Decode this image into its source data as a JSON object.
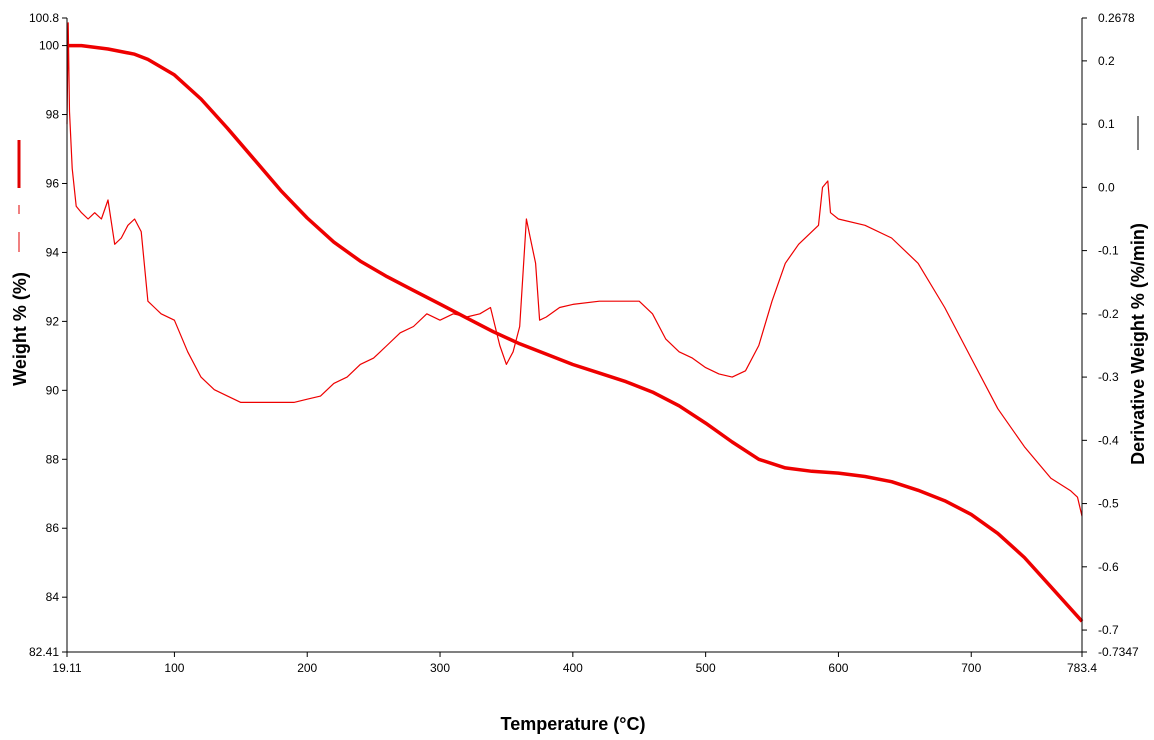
{
  "chart_data": {
    "type": "line",
    "xlabel": "Temperature (°C)",
    "ylabel_left": "Weight % (%)",
    "ylabel_right": "Derivative Weight % (%/min)",
    "xlim": [
      19.11,
      783.4
    ],
    "ylim_left": [
      82.41,
      100.8
    ],
    "ylim_right": [
      -0.7347,
      0.2678
    ],
    "x_ticks": [
      {
        "value": 19.11,
        "label": "19.11"
      },
      {
        "value": 100,
        "label": "100"
      },
      {
        "value": 200,
        "label": "200"
      },
      {
        "value": 300,
        "label": "300"
      },
      {
        "value": 400,
        "label": "400"
      },
      {
        "value": 500,
        "label": "500"
      },
      {
        "value": 600,
        "label": "600"
      },
      {
        "value": 700,
        "label": "700"
      },
      {
        "value": 783.4,
        "label": "783.4"
      }
    ],
    "y_left_ticks": [
      {
        "value": 100.8,
        "label": "100.8"
      },
      {
        "value": 100,
        "label": "100"
      },
      {
        "value": 98,
        "label": "98"
      },
      {
        "value": 96,
        "label": "96"
      },
      {
        "value": 94,
        "label": "94"
      },
      {
        "value": 92,
        "label": "92"
      },
      {
        "value": 90,
        "label": "90"
      },
      {
        "value": 88,
        "label": "88"
      },
      {
        "value": 86,
        "label": "86"
      },
      {
        "value": 84,
        "label": "84"
      },
      {
        "value": 82.41,
        "label": "82.41"
      }
    ],
    "y_right_ticks": [
      {
        "value": 0.2678,
        "label": "0.2678"
      },
      {
        "value": 0.2,
        "label": "0.2"
      },
      {
        "value": 0.1,
        "label": "0.1"
      },
      {
        "value": 0.0,
        "label": "0.0"
      },
      {
        "value": -0.1,
        "label": "-0.1"
      },
      {
        "value": -0.2,
        "label": "-0.2"
      },
      {
        "value": -0.3,
        "label": "-0.3"
      },
      {
        "value": -0.4,
        "label": "-0.4"
      },
      {
        "value": -0.5,
        "label": "-0.5"
      },
      {
        "value": -0.6,
        "label": "-0.6"
      },
      {
        "value": -0.7,
        "label": "-0.7"
      },
      {
        "value": -0.7347,
        "label": "-0.7347"
      }
    ],
    "series": [
      {
        "axis": "left",
        "color": "#ee0000",
        "style": "thick",
        "x": [
          19.11,
          30,
          50,
          70,
          80,
          100,
          120,
          140,
          160,
          180,
          200,
          220,
          240,
          260,
          280,
          300,
          320,
          340,
          360,
          380,
          400,
          420,
          440,
          460,
          480,
          500,
          520,
          540,
          560,
          580,
          600,
          620,
          640,
          660,
          680,
          700,
          720,
          740,
          760,
          783.4
        ],
        "values": [
          100.0,
          100.0,
          99.9,
          99.75,
          99.6,
          99.15,
          98.45,
          97.6,
          96.7,
          95.8,
          95.0,
          94.3,
          93.75,
          93.3,
          92.9,
          92.5,
          92.1,
          91.7,
          91.35,
          91.05,
          90.75,
          90.5,
          90.25,
          89.95,
          89.55,
          89.05,
          88.5,
          88.0,
          87.75,
          87.65,
          87.6,
          87.5,
          87.35,
          87.1,
          86.8,
          86.4,
          85.85,
          85.15,
          84.3,
          83.3
        ]
      },
      {
        "axis": "right",
        "color": "#ee0000",
        "style": "thin",
        "x": [
          19.11,
          20,
          21,
          23,
          26,
          30,
          35,
          40,
          45,
          50,
          55,
          60,
          65,
          70,
          75,
          80,
          85,
          90,
          100,
          110,
          120,
          130,
          140,
          150,
          160,
          170,
          180,
          190,
          200,
          210,
          220,
          230,
          240,
          250,
          260,
          270,
          280,
          290,
          300,
          310,
          320,
          330,
          338,
          345,
          350,
          355,
          360,
          365,
          368,
          372,
          375,
          380,
          390,
          400,
          420,
          440,
          450,
          460,
          470,
          480,
          490,
          500,
          510,
          520,
          530,
          540,
          550,
          560,
          570,
          585,
          588,
          592,
          594,
          600,
          620,
          640,
          660,
          680,
          700,
          720,
          740,
          760,
          775,
          780,
          783.4
        ],
        "values": [
          0.1,
          0.26,
          0.12,
          0.03,
          -0.03,
          -0.04,
          -0.05,
          -0.04,
          -0.05,
          -0.02,
          -0.09,
          -0.08,
          -0.06,
          -0.05,
          -0.07,
          -0.18,
          -0.19,
          -0.2,
          -0.21,
          -0.26,
          -0.3,
          -0.32,
          -0.33,
          -0.34,
          -0.34,
          -0.34,
          -0.34,
          -0.34,
          -0.335,
          -0.33,
          -0.31,
          -0.3,
          -0.28,
          -0.27,
          -0.25,
          -0.23,
          -0.22,
          -0.2,
          -0.21,
          -0.2,
          -0.205,
          -0.2,
          -0.19,
          -0.25,
          -0.28,
          -0.26,
          -0.22,
          -0.05,
          -0.08,
          -0.12,
          -0.21,
          -0.205,
          -0.19,
          -0.185,
          -0.18,
          -0.18,
          -0.18,
          -0.2,
          -0.24,
          -0.26,
          -0.27,
          -0.285,
          -0.295,
          -0.3,
          -0.29,
          -0.25,
          -0.18,
          -0.12,
          -0.09,
          -0.06,
          0.0,
          0.01,
          -0.04,
          -0.05,
          -0.06,
          -0.08,
          -0.12,
          -0.19,
          -0.27,
          -0.35,
          -0.41,
          -0.46,
          -0.48,
          -0.49,
          -0.52
        ]
      }
    ]
  }
}
